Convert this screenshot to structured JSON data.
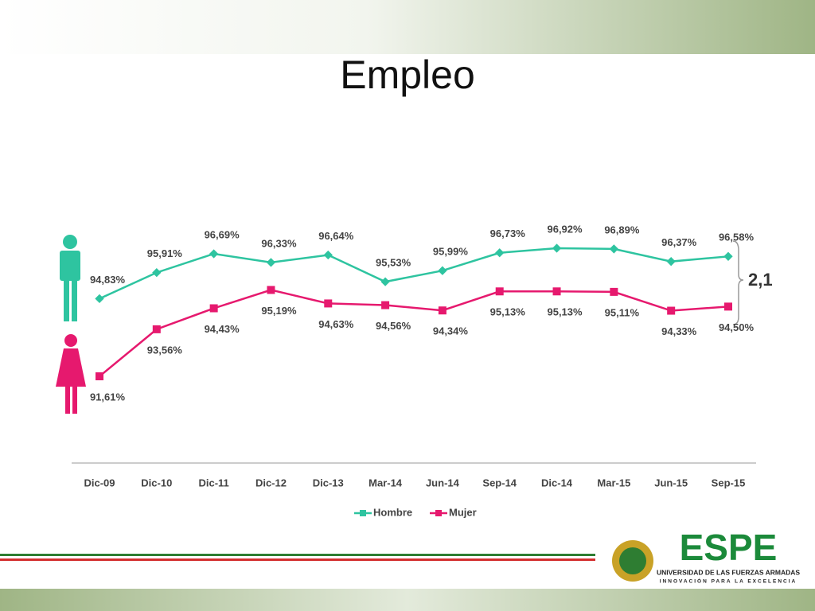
{
  "title": "Empleo",
  "chart_data": {
    "type": "line",
    "categories": [
      "Dic-09",
      "Dic-10",
      "Dic-11",
      "Dic-12",
      "Dic-13",
      "Mar-14",
      "Jun-14",
      "Sep-14",
      "Dic-14",
      "Mar-15",
      "Jun-15",
      "Sep-15"
    ],
    "series": [
      {
        "name": "Hombre",
        "color": "#2ec4a0",
        "values": [
          94.83,
          95.91,
          96.69,
          96.33,
          96.64,
          95.53,
          95.99,
          96.73,
          96.92,
          96.89,
          96.37,
          96.58
        ],
        "value_labels": [
          "94,83%",
          "95,91%",
          "96,69%",
          "96,33%",
          "96,64%",
          "95,53%",
          "95,99%",
          "96,73%",
          "96,92%",
          "96,89%",
          "96,37%",
          "96,58%"
        ]
      },
      {
        "name": "Mujer",
        "color": "#e6196e",
        "values": [
          91.61,
          93.56,
          94.43,
          95.19,
          94.63,
          94.56,
          94.34,
          95.13,
          95.13,
          95.11,
          94.33,
          94.5
        ],
        "value_labels": [
          "91,61%",
          "93,56%",
          "94,43%",
          "95,19%",
          "94,63%",
          "94,56%",
          "94,34%",
          "95,13%",
          "95,13%",
          "95,11%",
          "94,33%",
          "94,50%"
        ]
      }
    ],
    "annotation": "2,1"
  },
  "logo": {
    "name": "ESPE",
    "line1": "UNIVERSIDAD DE LAS FUERZAS ARMADAS",
    "line2": "INNOVACIÓN PARA LA EXCELENCIA"
  }
}
